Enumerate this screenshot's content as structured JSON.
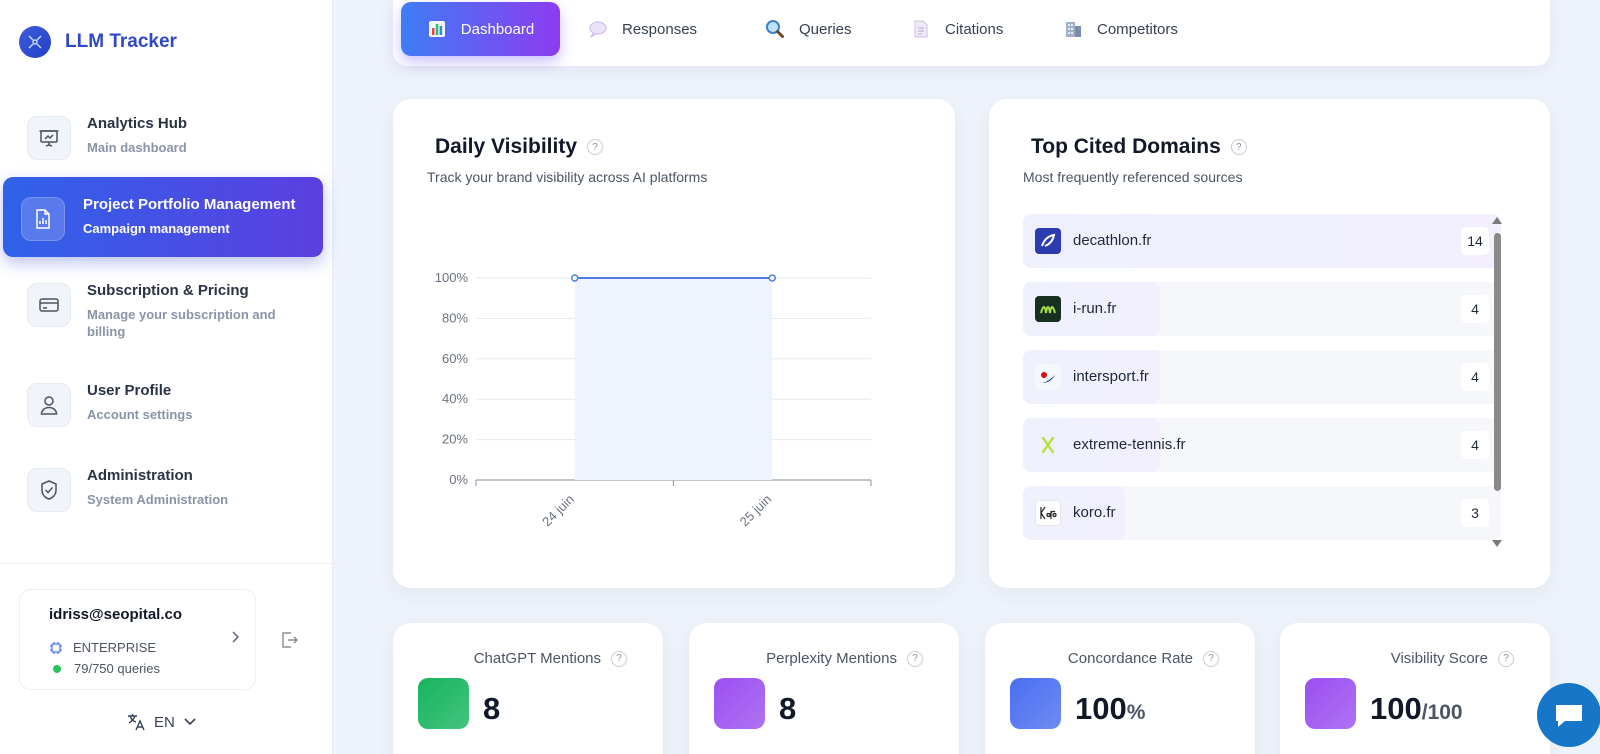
{
  "brand": {
    "name": "LLM Tracker"
  },
  "sidebar": {
    "items": [
      {
        "title": "Analytics Hub",
        "subtitle": "Main dashboard"
      },
      {
        "title": "Project Portfolio Management",
        "subtitle": "Campaign management"
      },
      {
        "title": "Subscription & Pricing",
        "subtitle": "Manage your subscription and billing"
      },
      {
        "title": "User Profile",
        "subtitle": "Account settings"
      },
      {
        "title": "Administration",
        "subtitle": "System Administration"
      }
    ],
    "active_index": 1
  },
  "account": {
    "email": "idriss@seopital.co",
    "plan": "ENTERPRISE",
    "quota": "79/750 queries"
  },
  "language": {
    "selected": "EN"
  },
  "tabs": [
    {
      "label": "Dashboard",
      "icon": "bar-chart-icon"
    },
    {
      "label": "Responses",
      "icon": "speech-bubble-icon"
    },
    {
      "label": "Queries",
      "icon": "magnifier-icon"
    },
    {
      "label": "Citations",
      "icon": "document-icon"
    },
    {
      "label": "Competitors",
      "icon": "building-icon"
    }
  ],
  "visibility_card": {
    "title": "Daily Visibility",
    "subtitle": "Track your brand visibility across AI platforms"
  },
  "chart_data": {
    "type": "area",
    "title": "Daily Visibility",
    "x": [
      "24 juin",
      "25 juin"
    ],
    "series": [
      {
        "values": [
          100,
          100
        ]
      }
    ],
    "ylim": [
      0,
      100
    ],
    "yticks": [
      "0%",
      "20%",
      "40%",
      "60%",
      "80%",
      "100%"
    ],
    "grid": true,
    "color": "#4f7ce8"
  },
  "domains_card": {
    "title": "Top Cited Domains",
    "subtitle": "Most frequently referenced sources",
    "items": [
      {
        "name": "decathlon.fr",
        "count": "14",
        "fraction": 1.0
      },
      {
        "name": "i-run.fr",
        "count": "4",
        "fraction": 0.286
      },
      {
        "name": "intersport.fr",
        "count": "4",
        "fraction": 0.286
      },
      {
        "name": "extreme-tennis.fr",
        "count": "4",
        "fraction": 0.286
      },
      {
        "name": "koro.fr",
        "count": "3",
        "fraction": 0.214
      }
    ]
  },
  "stats": [
    {
      "label": "ChatGPT Mentions",
      "value": "8",
      "unit": "",
      "color": "#16b45e"
    },
    {
      "label": "Perplexity Mentions",
      "value": "8",
      "unit": "",
      "color": "#9b4ff0"
    },
    {
      "label": "Concordance Rate",
      "value": "100",
      "unit": "%",
      "color": "#4a6ff0"
    },
    {
      "label": "Visibility Score",
      "value": "100",
      "unit": "/100",
      "color": "#9b4ff0"
    }
  ]
}
